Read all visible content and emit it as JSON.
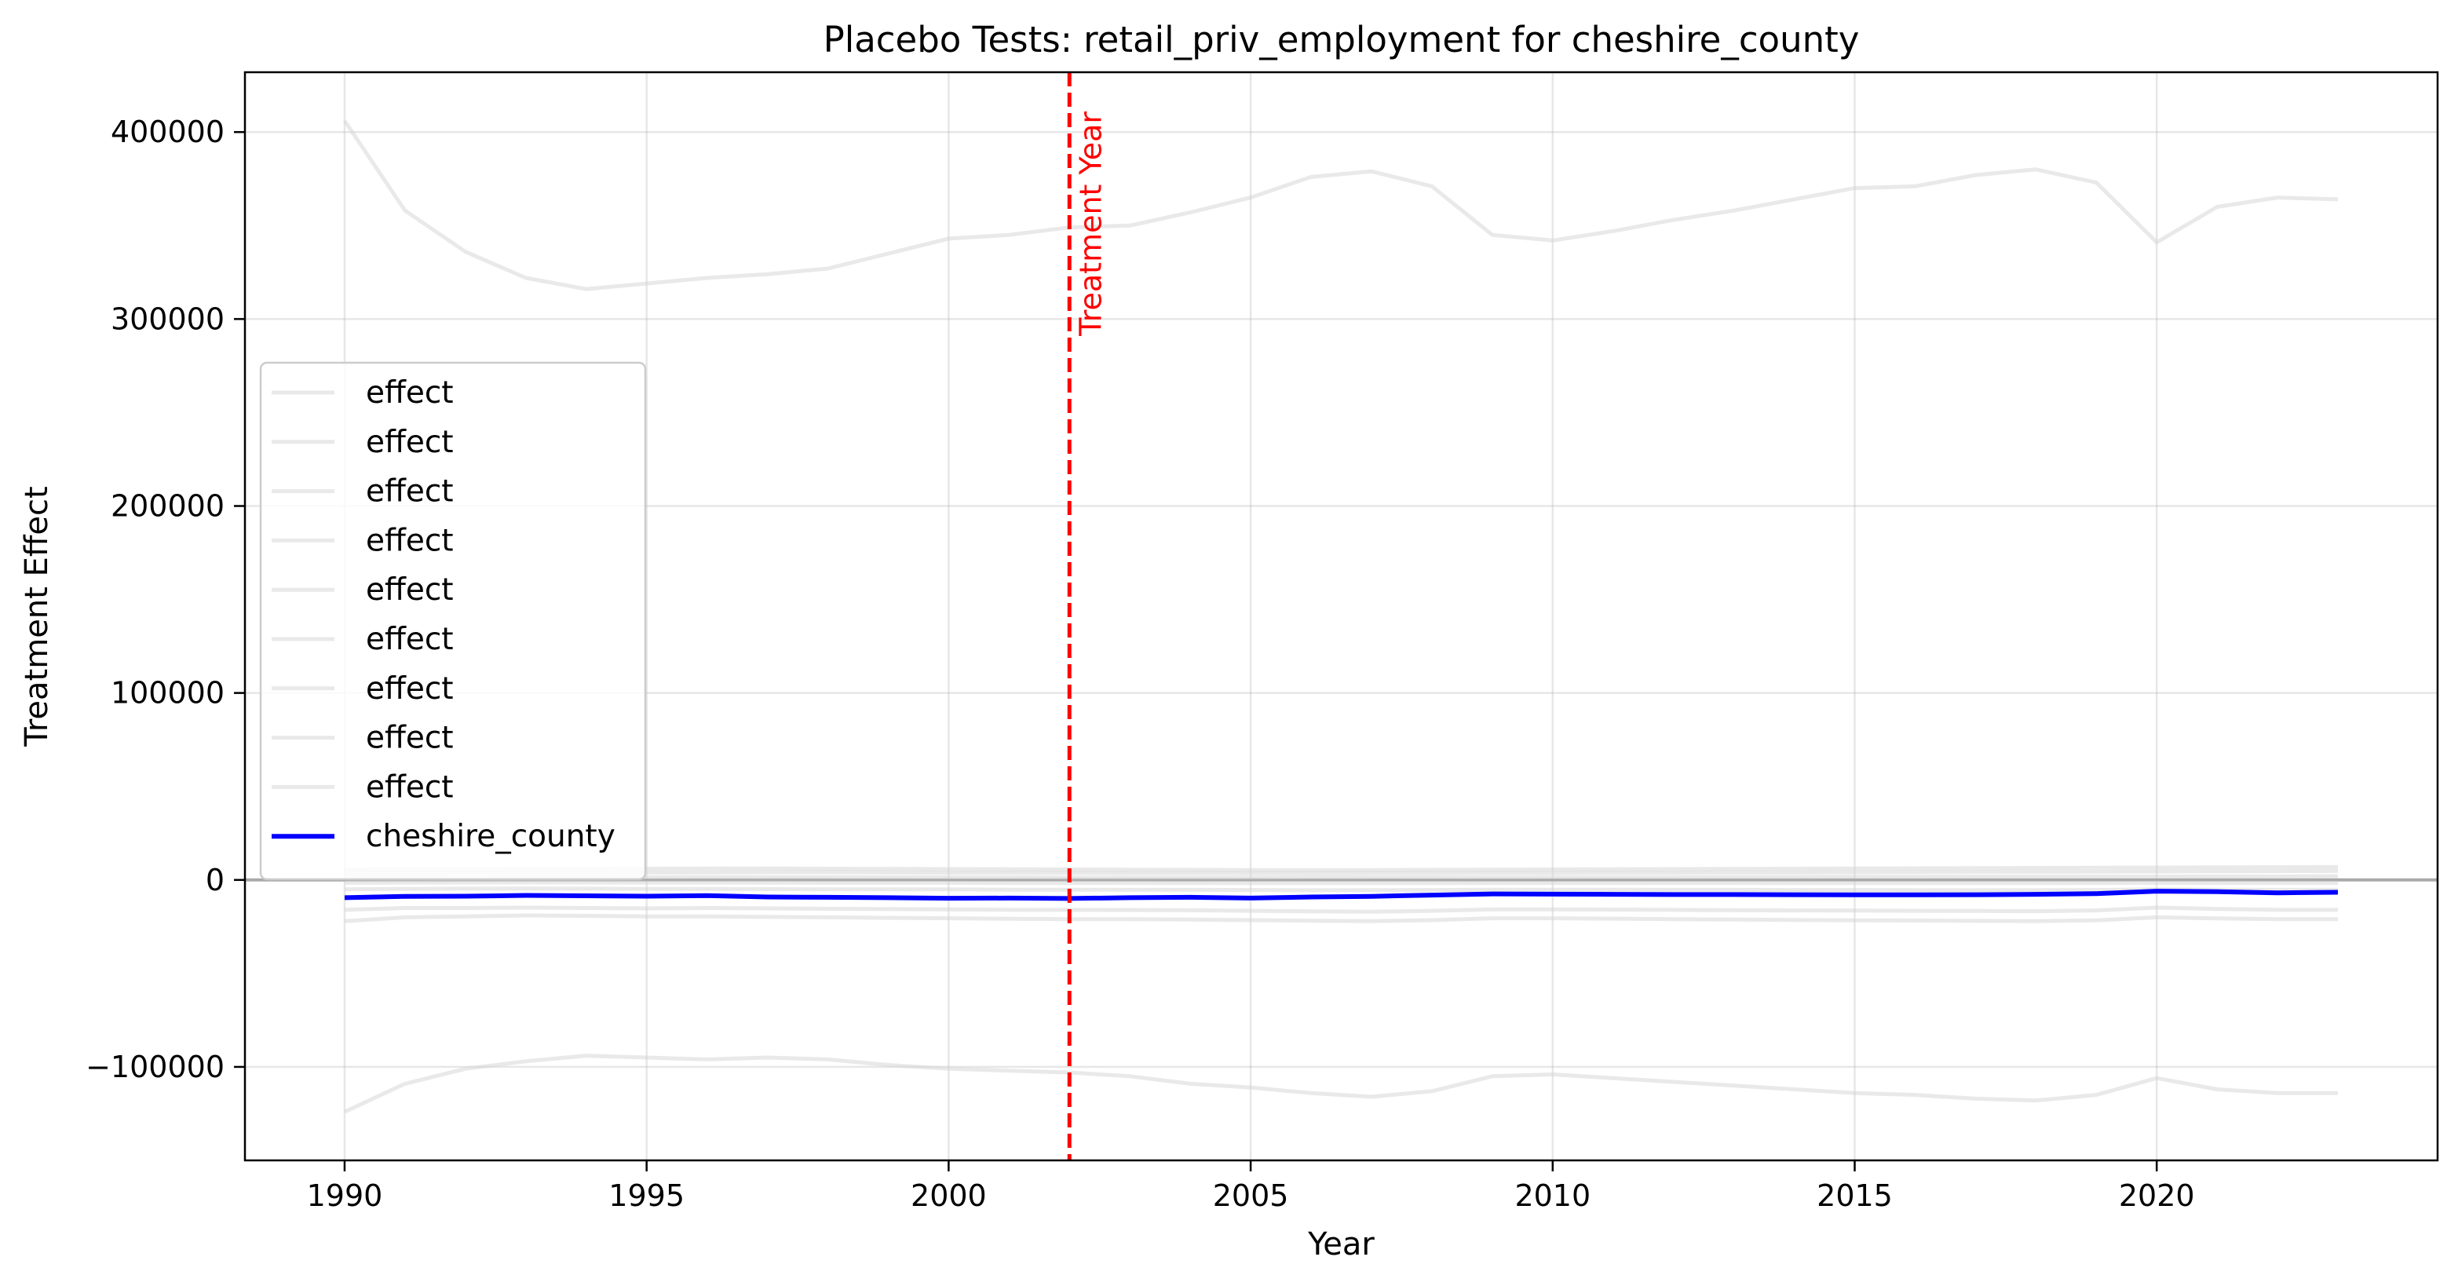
{
  "chart_data": {
    "type": "line",
    "title": "Placebo Tests: retail_priv_employment for cheshire_county",
    "xlabel": "Year",
    "ylabel": "Treatment Effect",
    "xlim": [
      1988.35,
      2024.65
    ],
    "ylim": [
      -150000,
      432000
    ],
    "xticks": [
      1990,
      1995,
      2000,
      2005,
      2010,
      2015,
      2020
    ],
    "yticks": [
      -100000,
      0,
      100000,
      200000,
      300000,
      400000
    ],
    "ytick_labels": [
      "−100000",
      "0",
      "100000",
      "200000",
      "300000",
      "400000"
    ],
    "grid": true,
    "legend_position": "center-left",
    "colors": {
      "placebo": "#d3d3d3",
      "treated": "#0000ff",
      "treatment_line": "#ff0000",
      "zero_line": "#a9a9a9"
    },
    "zero_line": 0,
    "treatment_year": 2002,
    "treatment_label": "Treatment Year",
    "years": [
      1990,
      1991,
      1992,
      1993,
      1994,
      1995,
      1996,
      1997,
      1998,
      1999,
      2000,
      2001,
      2002,
      2003,
      2004,
      2005,
      2006,
      2007,
      2008,
      2009,
      2010,
      2011,
      2012,
      2013,
      2014,
      2015,
      2016,
      2017,
      2018,
      2019,
      2020,
      2021,
      2022,
      2023
    ],
    "series": [
      {
        "name": "effect",
        "values": [
          406000,
          358000,
          336000,
          322000,
          316000,
          319000,
          322000,
          324000,
          327000,
          335000,
          343000,
          345000,
          349000,
          350000,
          357000,
          365000,
          376000,
          379000,
          371000,
          345000,
          342000,
          347000,
          353000,
          358000,
          364000,
          370000,
          371000,
          377000,
          380000,
          373000,
          341000,
          360000,
          365000,
          364000
        ]
      },
      {
        "name": "effect",
        "values": [
          -124000,
          -109000,
          -101000,
          -97000,
          -94000,
          -95000,
          -96000,
          -95000,
          -96000,
          -99000,
          -101000,
          -102000,
          -103000,
          -105000,
          -109000,
          -111000,
          -114000,
          -116000,
          -113000,
          -105000,
          -104000,
          -106000,
          -108000,
          -110000,
          -112000,
          -114000,
          -115000,
          -117000,
          -118000,
          -115000,
          -106000,
          -112000,
          -114000,
          -114000
        ]
      },
      {
        "name": "effect",
        "values": [
          -22000,
          -20000,
          -19500,
          -19000,
          -19200,
          -19500,
          -19500,
          -19800,
          -20000,
          -20300,
          -20500,
          -20800,
          -21000,
          -21000,
          -21200,
          -21500,
          -21800,
          -22000,
          -21500,
          -20500,
          -20500,
          -20700,
          -21000,
          -21200,
          -21400,
          -21600,
          -21700,
          -21900,
          -22000,
          -21600,
          -20000,
          -20600,
          -21000,
          -21000
        ]
      },
      {
        "name": "effect",
        "values": [
          -16000,
          -15000,
          -15000,
          -14800,
          -15000,
          -15200,
          -15000,
          -15200,
          -15400,
          -15600,
          -15800,
          -16000,
          -16000,
          -16100,
          -16200,
          -16500,
          -16800,
          -17000,
          -16500,
          -15800,
          -15800,
          -15900,
          -16000,
          -16200,
          -16300,
          -16400,
          -16500,
          -16600,
          -16700,
          -16300,
          -14800,
          -15500,
          -16000,
          -16000
        ]
      },
      {
        "name": "effect",
        "values": [
          -5000,
          -4800,
          -4700,
          -4600,
          -4700,
          -4800,
          -4800,
          -4900,
          -5000,
          -5000,
          -5100,
          -5200,
          -5200,
          -5300,
          -5300,
          -5400,
          -5500,
          -5500,
          -5400,
          -5200,
          -5200,
          -5200,
          -5300,
          -5300,
          -5400,
          -5400,
          -5500,
          -5500,
          -5500,
          -5400,
          -5000,
          -5200,
          -5300,
          -5300
        ]
      },
      {
        "name": "effect",
        "values": [
          -1500,
          -1400,
          -1300,
          -1300,
          -1300,
          -1400,
          -1400,
          -1400,
          -1500,
          -1500,
          -1500,
          -1600,
          -1600,
          -1600,
          -1700,
          -1700,
          -1700,
          -1700,
          -1700,
          -1600,
          -1600,
          -1600,
          -1600,
          -1600,
          -1700,
          -1700,
          -1700,
          -1700,
          -1700,
          -1600,
          -1500,
          -1600,
          -1600,
          -1600
        ]
      },
      {
        "name": "effect",
        "values": [
          1200,
          1300,
          1300,
          1400,
          1400,
          1400,
          1500,
          1500,
          1500,
          1400,
          1400,
          1400,
          1300,
          1300,
          1300,
          1300,
          1400,
          1400,
          1400,
          1400,
          1500,
          1500,
          1500,
          1600,
          1600,
          1700,
          1700,
          1800,
          1800,
          1800,
          1800,
          1900,
          1900,
          2000
        ]
      },
      {
        "name": "effect",
        "values": [
          3500,
          3600,
          3700,
          3800,
          3900,
          4000,
          4000,
          4100,
          4100,
          4000,
          3900,
          3900,
          3800,
          3700,
          3700,
          3600,
          3600,
          3700,
          3700,
          3800,
          3800,
          3900,
          3900,
          4000,
          4000,
          4100,
          4200,
          4300,
          4300,
          4400,
          4500,
          4600,
          4700,
          4800
        ]
      },
      {
        "name": "effect",
        "values": [
          5500,
          5600,
          5700,
          5800,
          5900,
          6000,
          6100,
          6100,
          6000,
          5900,
          5800,
          5700,
          5600,
          5500,
          5400,
          5300,
          5300,
          5300,
          5400,
          5500,
          5600,
          5700,
          5800,
          5900,
          6000,
          6100,
          6200,
          6300,
          6400,
          6500,
          6600,
          6700,
          6800,
          6900
        ]
      },
      {
        "name": "cheshire_county",
        "values": [
          -9500,
          -8800,
          -8700,
          -8300,
          -8500,
          -8700,
          -8400,
          -9100,
          -9300,
          -9500,
          -9800,
          -9700,
          -9900,
          -9500,
          -9300,
          -9700,
          -9100,
          -8800,
          -8100,
          -7500,
          -7600,
          -7700,
          -7800,
          -7800,
          -7900,
          -8000,
          -8000,
          -7900,
          -7700,
          -7300,
          -6000,
          -6300,
          -6900,
          -6600
        ]
      }
    ]
  }
}
